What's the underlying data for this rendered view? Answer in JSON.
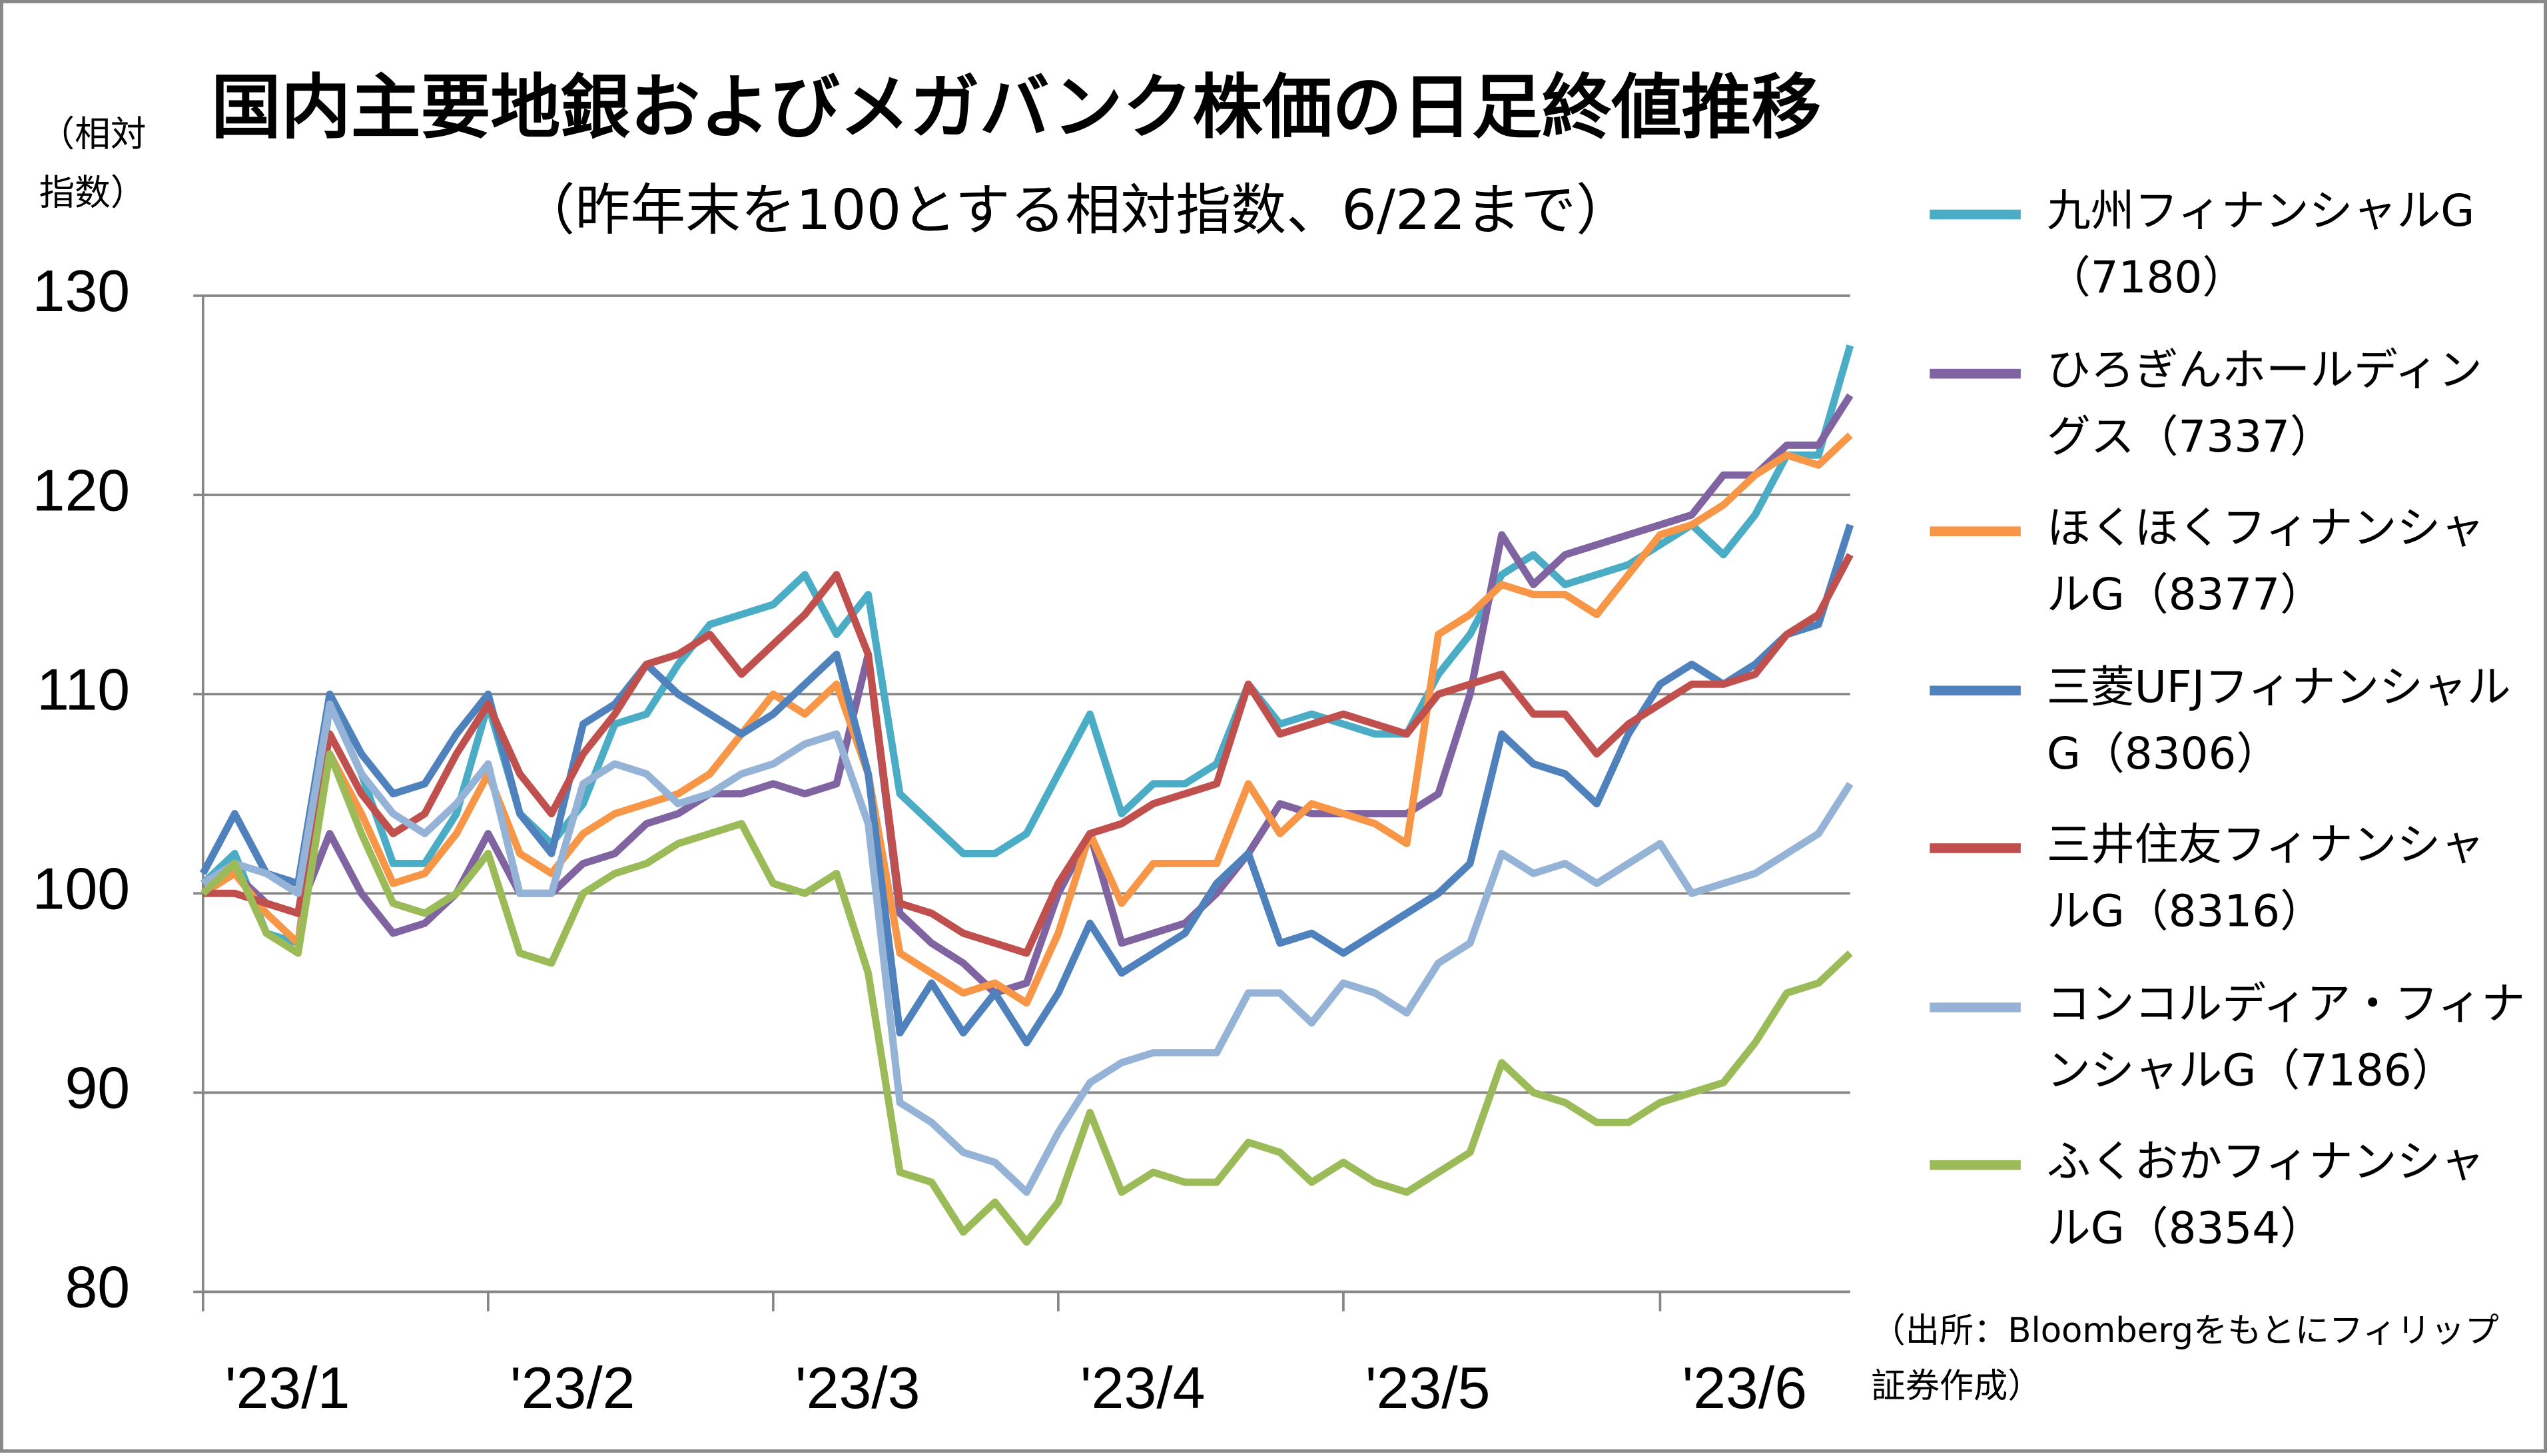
{
  "chart_data": {
    "type": "line",
    "title": "国内主要地銀およびメガバンク株価の日足終値推移",
    "subtitle": "（昨年末を100とする相対指数、6/22まで）",
    "y_label": "（相対指数）",
    "source": "（出所：Bloombergをもとにフィリップ証券作成）",
    "categories": [
      "'23/1",
      null,
      null,
      null,
      null,
      null,
      null,
      null,
      null,
      "'23/2",
      null,
      null,
      null,
      null,
      null,
      null,
      null,
      null,
      "'23/3",
      null,
      null,
      null,
      null,
      null,
      null,
      null,
      null,
      "'23/4",
      null,
      null,
      null,
      null,
      null,
      null,
      null,
      null,
      "'23/5",
      null,
      null,
      null,
      null,
      null,
      null,
      null,
      null,
      null,
      "'23/6",
      null,
      null,
      null,
      null,
      null,
      null
    ],
    "ylim": [
      80,
      130
    ],
    "yticks": [
      80,
      90,
      100,
      110,
      120,
      130
    ],
    "grid": true,
    "series": [
      {
        "name": "九州フィナンシャルG（7180）",
        "color": "#4bacc6",
        "values": [
          100.5,
          102,
          98,
          97.5,
          109.5,
          106,
          101.5,
          101.5,
          104,
          109.5,
          104,
          102.5,
          104.5,
          108.5,
          109,
          111.5,
          113.5,
          114,
          114.5,
          116,
          113,
          115,
          105,
          103.5,
          102,
          102,
          103,
          106,
          109,
          104,
          105.5,
          105.5,
          106.5,
          110.5,
          108.5,
          109,
          108.5,
          108,
          108,
          111,
          113,
          116,
          117,
          115.5,
          116,
          116.5,
          117.5,
          118.5,
          117,
          119,
          122,
          122,
          127.5
        ]
      },
      {
        "name": "ひろぎんホールディングス（7337）",
        "color": "#8064a2",
        "values": [
          100.5,
          101,
          99.5,
          99,
          103,
          100,
          98,
          98.5,
          100,
          103,
          100,
          100,
          101.5,
          102,
          103.5,
          104,
          105,
          105,
          105.5,
          105,
          105.5,
          112,
          99,
          97.5,
          96.5,
          95,
          95.5,
          100,
          103,
          97.5,
          98,
          98.5,
          100,
          102,
          104.5,
          104,
          104,
          104,
          104,
          105,
          110,
          118,
          115.5,
          117,
          117.5,
          118,
          118.5,
          119,
          121,
          121,
          122.5,
          122.5,
          125
        ]
      },
      {
        "name": "ほくほくフィナンシャルG（8377）",
        "color": "#f79646",
        "values": [
          100,
          101,
          99,
          97.5,
          107,
          104,
          100.5,
          101,
          103,
          106,
          102,
          101,
          103,
          104,
          104.5,
          105,
          106,
          108,
          110,
          109,
          110.5,
          106,
          97,
          96,
          95,
          95.5,
          94.5,
          98,
          103,
          99.5,
          101.5,
          101.5,
          101.5,
          105.5,
          103,
          104.5,
          104,
          103.5,
          102.5,
          113,
          114,
          115.5,
          115,
          115,
          114,
          116,
          118,
          118.5,
          119.5,
          121,
          122,
          121.5,
          123
        ]
      },
      {
        "name": "三菱UFJフィナンシャルG（8306）",
        "color": "#4f81bd",
        "values": [
          101,
          104,
          101,
          100.5,
          110,
          107,
          105,
          105.5,
          108,
          110,
          104,
          102,
          108.5,
          109.5,
          111.5,
          110,
          109,
          108,
          109,
          110.5,
          112,
          106,
          93,
          95.5,
          93,
          95,
          92.5,
          95,
          98.5,
          96,
          97,
          98,
          100.5,
          102,
          97.5,
          98,
          97,
          98,
          99,
          100,
          101.5,
          108,
          106.5,
          106,
          104.5,
          108,
          110.5,
          111.5,
          110.5,
          111.5,
          113,
          113.5,
          118.5
        ]
      },
      {
        "name": "三井住友フィナンシャルG（8316）",
        "color": "#c0504d",
        "values": [
          100,
          100,
          99.5,
          99,
          108,
          105,
          103,
          104,
          107,
          109.5,
          106,
          104,
          107,
          109,
          111.5,
          112,
          113,
          111,
          112.5,
          114,
          116,
          112,
          99.5,
          99,
          98,
          97.5,
          97,
          100.5,
          103,
          103.5,
          104.5,
          105,
          105.5,
          110.5,
          108,
          108.5,
          109,
          108.5,
          108,
          110,
          110.5,
          111,
          109,
          109,
          107,
          108.5,
          109.5,
          110.5,
          110.5,
          111,
          113,
          114,
          117
        ]
      },
      {
        "name": "コンコルディア・フィナンシャルG（7186）",
        "color": "#95b3d7",
        "values": [
          100.5,
          101.5,
          101,
          100,
          109.5,
          106,
          104,
          103,
          104.5,
          106.5,
          100,
          100,
          105.5,
          106.5,
          106,
          104.5,
          105,
          106,
          106.5,
          107.5,
          108,
          103.5,
          89.5,
          88.5,
          87,
          86.5,
          85,
          88,
          90.5,
          91.5,
          92,
          92,
          92,
          95,
          95,
          93.5,
          95.5,
          95,
          94,
          96.5,
          97.5,
          102,
          101,
          101.5,
          100.5,
          101.5,
          102.5,
          100,
          100.5,
          101,
          102,
          103,
          105.5
        ]
      },
      {
        "name": "ふくおかフィナンシャルG（8354）",
        "color": "#9bbb59",
        "values": [
          100,
          101.5,
          98,
          97,
          107,
          103,
          99.5,
          99,
          100,
          102,
          97,
          96.5,
          100,
          101,
          101.5,
          102.5,
          103,
          103.5,
          100.5,
          100,
          101,
          96,
          86,
          85.5,
          83,
          84.5,
          82.5,
          84.5,
          89,
          85,
          86,
          85.5,
          85.5,
          87.5,
          87,
          85.5,
          86.5,
          85.5,
          85,
          86,
          87,
          91.5,
          90,
          89.5,
          88.5,
          88.5,
          89.5,
          90,
          90.5,
          92.5,
          95,
          95.5,
          97
        ]
      }
    ]
  }
}
